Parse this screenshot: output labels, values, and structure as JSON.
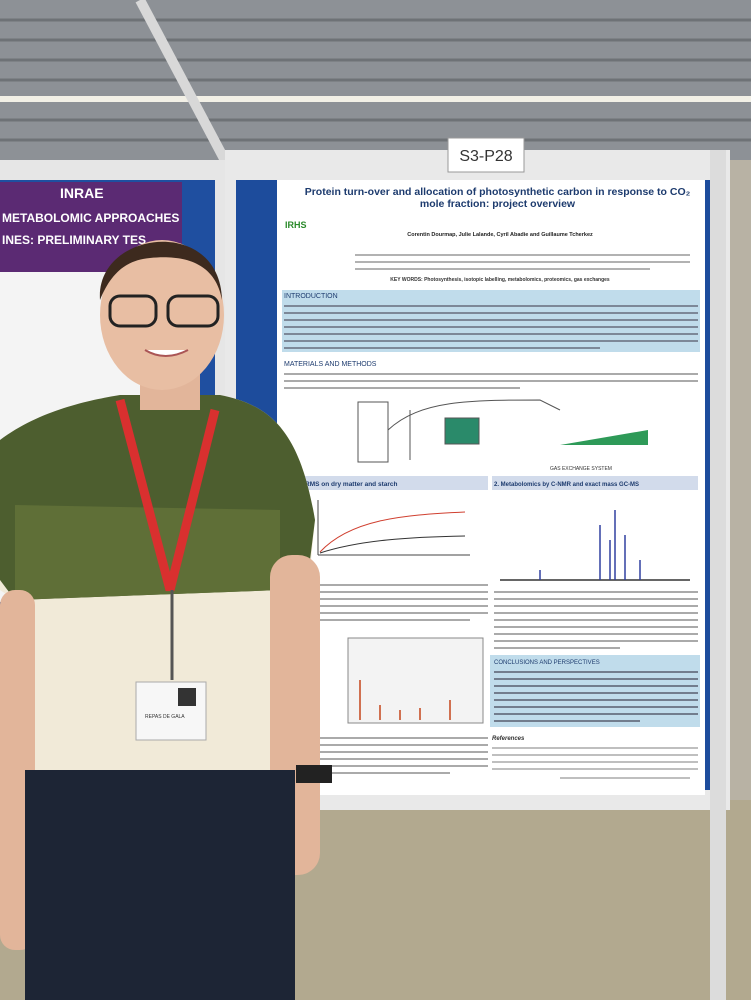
{
  "board_label": "S3-P28",
  "poster": {
    "title": "Protein turn-over and allocation of photosynthetic carbon in response to CO₂ mole fraction: project overview",
    "authors": "Corentin Dourmap, Julie Lalande, Cyril Abadie and Guillaume Tcherkez",
    "keywords": "KEY WORDS: Photosynthesis, isotopic labelling, metabolomics, proteomics, gas exchanges",
    "sections": [
      "INTRODUCTION",
      "MATERIALS AND METHODS",
      "EA-IRMS on dry matter and starch",
      "2. Metabolomics by C-NMR and exact mass GC-MS",
      "CONCLUSIONS AND PERSPECTIVES",
      "References"
    ],
    "figure_caption": "GAS EXCHANGE SYSTEM"
  },
  "left_poster": {
    "logo": "INRAE",
    "title_1": "METABOLOMIC APPROACHES",
    "title_2": "INES: PRELIMINARY TES"
  },
  "badge": "REPAS DE GALA"
}
